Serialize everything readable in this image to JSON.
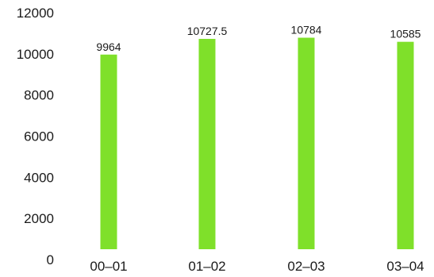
{
  "chart_data": {
    "type": "bar",
    "title": "",
    "xlabel": "",
    "ylabel": "",
    "categories": [
      "00–01",
      "01–02",
      "02–03",
      "03–04"
    ],
    "values": [
      9964,
      10727.5,
      10784,
      10585
    ],
    "data_labels": [
      "9964",
      "10727.5",
      "10784",
      "10585"
    ],
    "ylim": [
      0,
      12000
    ],
    "yticks": [
      0,
      2000,
      4000,
      6000,
      8000,
      10000,
      12000
    ],
    "grid": false,
    "legend": "none",
    "bar_color": "#7fe02a"
  }
}
